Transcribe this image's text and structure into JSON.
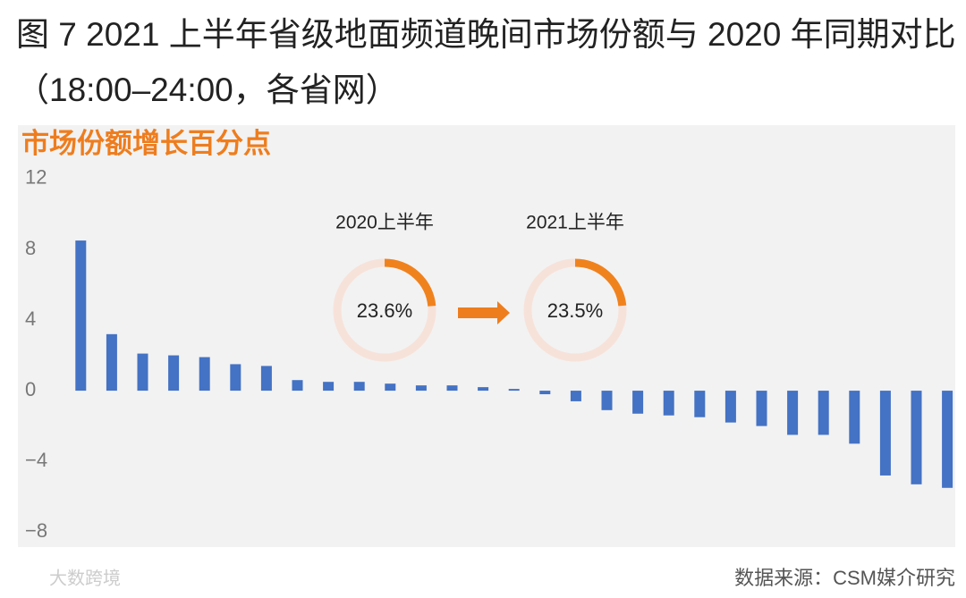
{
  "chart_data": {
    "type": "bar",
    "title": "图 7 2021 上半年省级地面频道晚间市场份额与 2020 年同期对比（18:00–24:00，各省网）",
    "subtitle": "市场份额增长百分点",
    "source": "数据来源：CSM媒介研究",
    "watermark": "大数跨境",
    "categories": [
      null,
      null,
      null,
      null,
      null,
      null,
      null,
      null,
      null,
      null,
      null,
      null,
      null,
      null,
      null,
      null,
      null,
      null,
      null,
      null,
      null,
      null,
      null,
      null,
      null,
      null,
      null,
      null,
      null
    ],
    "values": [
      8.5,
      3.2,
      2.1,
      2.0,
      1.9,
      1.5,
      1.4,
      0.6,
      0.5,
      0.5,
      0.4,
      0.3,
      0.3,
      0.2,
      0.1,
      -0.2,
      -0.6,
      -1.1,
      -1.3,
      -1.4,
      -1.5,
      -1.8,
      -2.0,
      -2.5,
      -2.5,
      -3.0,
      -4.8,
      -5.3,
      -5.5
    ],
    "color": "#4472c4",
    "ylim": [
      -8.8,
      12.4
    ],
    "yticks": [
      {
        "value": -8,
        "label": "−8"
      },
      {
        "value": -4,
        "label": "−4"
      },
      0,
      4,
      8,
      12
    ],
    "donuts": [
      {
        "label": "2020上半年",
        "value": 23.6,
        "value_label": "23.6%"
      },
      {
        "label": "2021上半年",
        "value": 23.5,
        "value_label": "23.5%"
      }
    ],
    "donut_color": "#f0821e"
  }
}
